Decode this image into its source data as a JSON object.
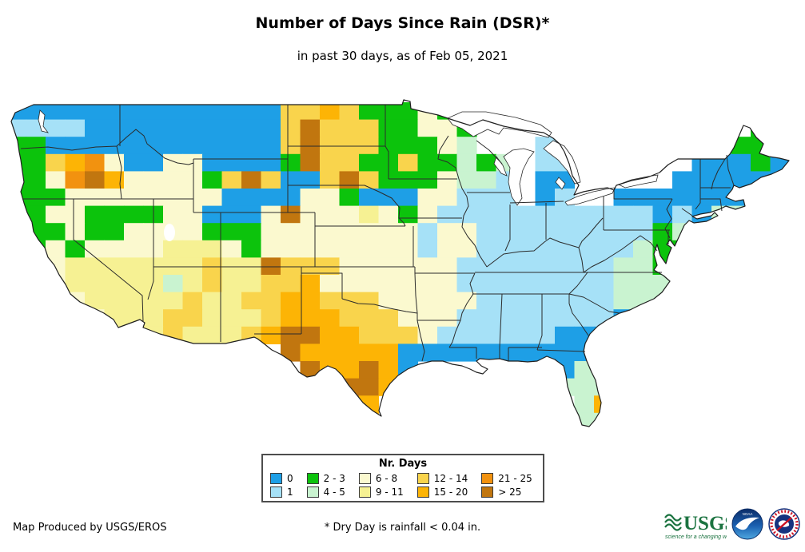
{
  "title": "Number of Days Since Rain (DSR)*",
  "subtitle": "in past 30 days, as of Feb 05, 2021",
  "legend": {
    "title": "Nr. Days",
    "items": [
      {
        "label": "0",
        "color": "#1e9fe6"
      },
      {
        "label": "1",
        "color": "#a6e1f7"
      },
      {
        "label": "2 - 3",
        "color": "#0cc30c"
      },
      {
        "label": "4 - 5",
        "color": "#c9f3d0"
      },
      {
        "label": "6 - 8",
        "color": "#fbf9cf"
      },
      {
        "label": "9 - 11",
        "color": "#f6f193"
      },
      {
        "label": "12 - 14",
        "color": "#f9d44c"
      },
      {
        "label": "15 - 20",
        "color": "#fdb405"
      },
      {
        "label": "21 - 25",
        "color": "#f2920f"
      },
      {
        "label": "> 25",
        "color": "#c1760f"
      }
    ]
  },
  "footer": {
    "credit": "Map Produced by USGS/EROS",
    "note": "* Dry Day is rainfall < 0.04 in."
  },
  "logos": {
    "usgs": {
      "text": "USGS",
      "tagline": "science for a changing world",
      "color": "#1b7340"
    },
    "noaa": {
      "label": "NOAA"
    },
    "nws": {
      "label": "National Weather Service"
    }
  },
  "map_data": {
    "type": "choropleth-grid",
    "title": "Number of Days Since Rain (DSR), past 30 days, as of Feb 05, 2021",
    "units": "days since rainfall >= 0.04 in",
    "palette": {
      "B": "#1e9fe6",
      "b": "#a6e1f7",
      "G": "#0cc30c",
      "g": "#c9f3d0",
      "C": "#fbf9cf",
      "y": "#f6f193",
      "Y": "#f9d44c",
      "O": "#fdb405",
      "R": "#f2920f",
      "N": "#c1760f"
    },
    "palette_meaning": {
      "B": "0 days",
      "b": "1 day",
      "G": "2-3 days",
      "g": "4-5 days",
      "C": "6-8 days",
      "y": "9-11 days",
      "Y": "12-14 days",
      "O": "15-20 days",
      "R": "21-25 days",
      "N": "more than 25 days",
      ".": "no data / outside CONUS"
    },
    "grid_cols": 40,
    "grid_rows": 20,
    "origin": [
      8,
      128
    ],
    "cell": [
      24.5,
      21.6
    ],
    "grid": [
      "BBBBBBBBBBBBBBYYOYGGGCG.................",
      "bbbbBBBBBBBBBBYNYYYGGCCG..............G.",
      "GGBBBBBBBBBBBBYNYYYGGGCg...bb........GGG",
      "GGYORCBBCCBBBBGNYYGGYGGgGg.bb......BBBGB",
      "GGCRNOCCCCGYNYBBYNYGGGCggb.BB.....BBBBBB",
      "GGGCCCCCCCCBBBBCCGBBBCCbbb.Bb..BBBBBBBB.",
      "GGCCGGGGCCBBBCNCCCyCGCbbbbbbbbbbbBbBggg.",
      ".GGCGGCCCCGGGCCCCCCCCbCCbbbbbbbbbGgG....",
      ".GCGCCCCyyyCGCCCCCCCCbCCbbbbbbbbgGG.....",
      ".GCyyyyyyyYyyNYYYCCCCCCbbbbbbbbggGG.....",
      ".GCyyyyygyYyyYYOCCCCCCCbbbbbbbbgggBB....",
      "...CyyyyyYyyYYOOYYYCCCCCbbbbbbbgggB.....",
      "....CyyyYYyyyYOOOYYYCCCbbbbbbbbBBB......",
      "......yyYyyyYONNOOYYYCbbbbbbBBBB........",
      "..............NOOOOOBBBBBBBBBBBBB.......",
      "...............NOONOB.......Bgg.........",
      "................NNNO........ggg.........",
      ".................NO..........gO.........",
      "..................O..........gg.........",
      "........................................"
    ]
  }
}
